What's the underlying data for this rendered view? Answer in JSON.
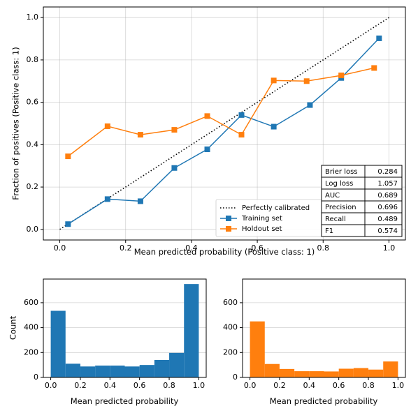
{
  "colors": {
    "train": "#1f77b4",
    "holdout": "#ff7f0e",
    "perfect": "#000000"
  },
  "chart_data": [
    {
      "type": "line",
      "xlabel": "Mean predicted probability (Positive class: 1)",
      "ylabel": "Fraction of positives (Positive class: 1)",
      "xlim": [
        -0.05,
        1.05
      ],
      "ylim": [
        -0.05,
        1.05
      ],
      "xticks": [
        "0.0",
        "0.2",
        "0.4",
        "0.6",
        "0.8",
        "1.0"
      ],
      "yticks": [
        "0.0",
        "0.2",
        "0.4",
        "0.6",
        "0.8",
        "1.0"
      ],
      "grid": true,
      "legend_placement": "lower-right",
      "series": [
        {
          "name": "Perfectly calibrated",
          "style": "dotted",
          "color": "#000000",
          "x": [
            0.0,
            1.0
          ],
          "y": [
            0.0,
            1.0
          ]
        },
        {
          "name": "Training set",
          "marker": "square",
          "color": "#1f77b4",
          "x": [
            0.025,
            0.145,
            0.245,
            0.348,
            0.448,
            0.552,
            0.65,
            0.76,
            0.855,
            0.97
          ],
          "y": [
            0.025,
            0.143,
            0.133,
            0.29,
            0.378,
            0.54,
            0.485,
            0.587,
            0.715,
            0.902
          ]
        },
        {
          "name": "Holdout set",
          "marker": "square",
          "color": "#ff7f0e",
          "x": [
            0.025,
            0.145,
            0.245,
            0.348,
            0.448,
            0.552,
            0.65,
            0.75,
            0.855,
            0.955
          ],
          "y": [
            0.345,
            0.487,
            0.447,
            0.47,
            0.535,
            0.447,
            0.703,
            0.7,
            0.727,
            0.762
          ]
        }
      ],
      "metrics_table": [
        {
          "metric": "Brier loss",
          "value": "0.284"
        },
        {
          "metric": "Log loss",
          "value": "1.057"
        },
        {
          "metric": "AUC",
          "value": "0.689"
        },
        {
          "metric": "Precision",
          "value": "0.696"
        },
        {
          "metric": "Recall",
          "value": "0.489"
        },
        {
          "metric": "F1",
          "value": "0.574"
        }
      ]
    },
    {
      "type": "bar",
      "xlabel": "Mean predicted probability",
      "ylabel": "Count",
      "color": "#1f77b4",
      "xlim": [
        -0.05,
        1.05
      ],
      "ylim": [
        0,
        790
      ],
      "xticks": [
        "0.0",
        "0.2",
        "0.4",
        "0.6",
        "0.8",
        "1.0"
      ],
      "yticks": [
        "0",
        "200",
        "400",
        "600"
      ],
      "bin_edges": [
        0.0,
        0.1,
        0.2,
        0.3,
        0.4,
        0.5,
        0.6,
        0.7,
        0.8,
        0.9,
        1.0
      ],
      "values": [
        535,
        110,
        88,
        95,
        95,
        88,
        100,
        140,
        197,
        750
      ]
    },
    {
      "type": "bar",
      "xlabel": "Mean predicted probability",
      "ylabel": "",
      "color": "#ff7f0e",
      "xlim": [
        -0.05,
        1.05
      ],
      "ylim": [
        0,
        790
      ],
      "xticks": [
        "0.0",
        "0.2",
        "0.4",
        "0.6",
        "0.8",
        "1.0"
      ],
      "yticks": [
        "0",
        "200",
        "400",
        "600"
      ],
      "bin_edges": [
        0.0,
        0.1,
        0.2,
        0.3,
        0.4,
        0.5,
        0.6,
        0.7,
        0.8,
        0.9,
        1.0
      ],
      "values": [
        450,
        108,
        68,
        50,
        50,
        48,
        70,
        75,
        63,
        128
      ]
    }
  ]
}
